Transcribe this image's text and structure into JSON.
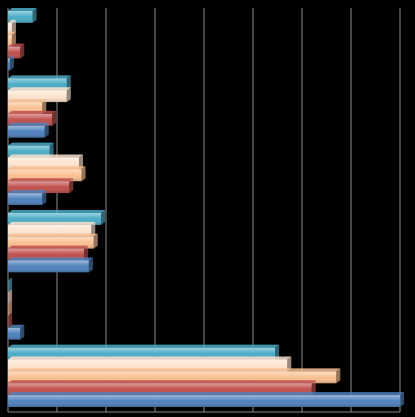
{
  "chart_data": {
    "type": "hbar",
    "categories": [
      null,
      null,
      null,
      null,
      null,
      null
    ],
    "series": [
      {
        "color": "#4bacc6",
        "values": [
          0.5,
          1.2,
          0.85,
          1.9,
          0,
          5.45
        ]
      },
      {
        "color": "#fde4cf",
        "values": [
          0.08,
          1.2,
          1.45,
          1.7,
          0,
          5.7
        ]
      },
      {
        "color": "#fac090",
        "values": [
          0.08,
          0.7,
          1.5,
          1.75,
          0,
          6.7
        ]
      },
      {
        "color": "#c0504d",
        "values": [
          0.25,
          0.9,
          1.25,
          1.55,
          0,
          6.2
        ]
      },
      {
        "color": "#4f81bd",
        "values": [
          0.04,
          0.75,
          0.7,
          1.65,
          0.25,
          8
        ]
      }
    ],
    "xlim": [
      0,
      8
    ],
    "xticks": [
      0,
      1,
      2,
      3,
      4,
      5,
      6,
      7,
      8
    ],
    "grid": true
  }
}
